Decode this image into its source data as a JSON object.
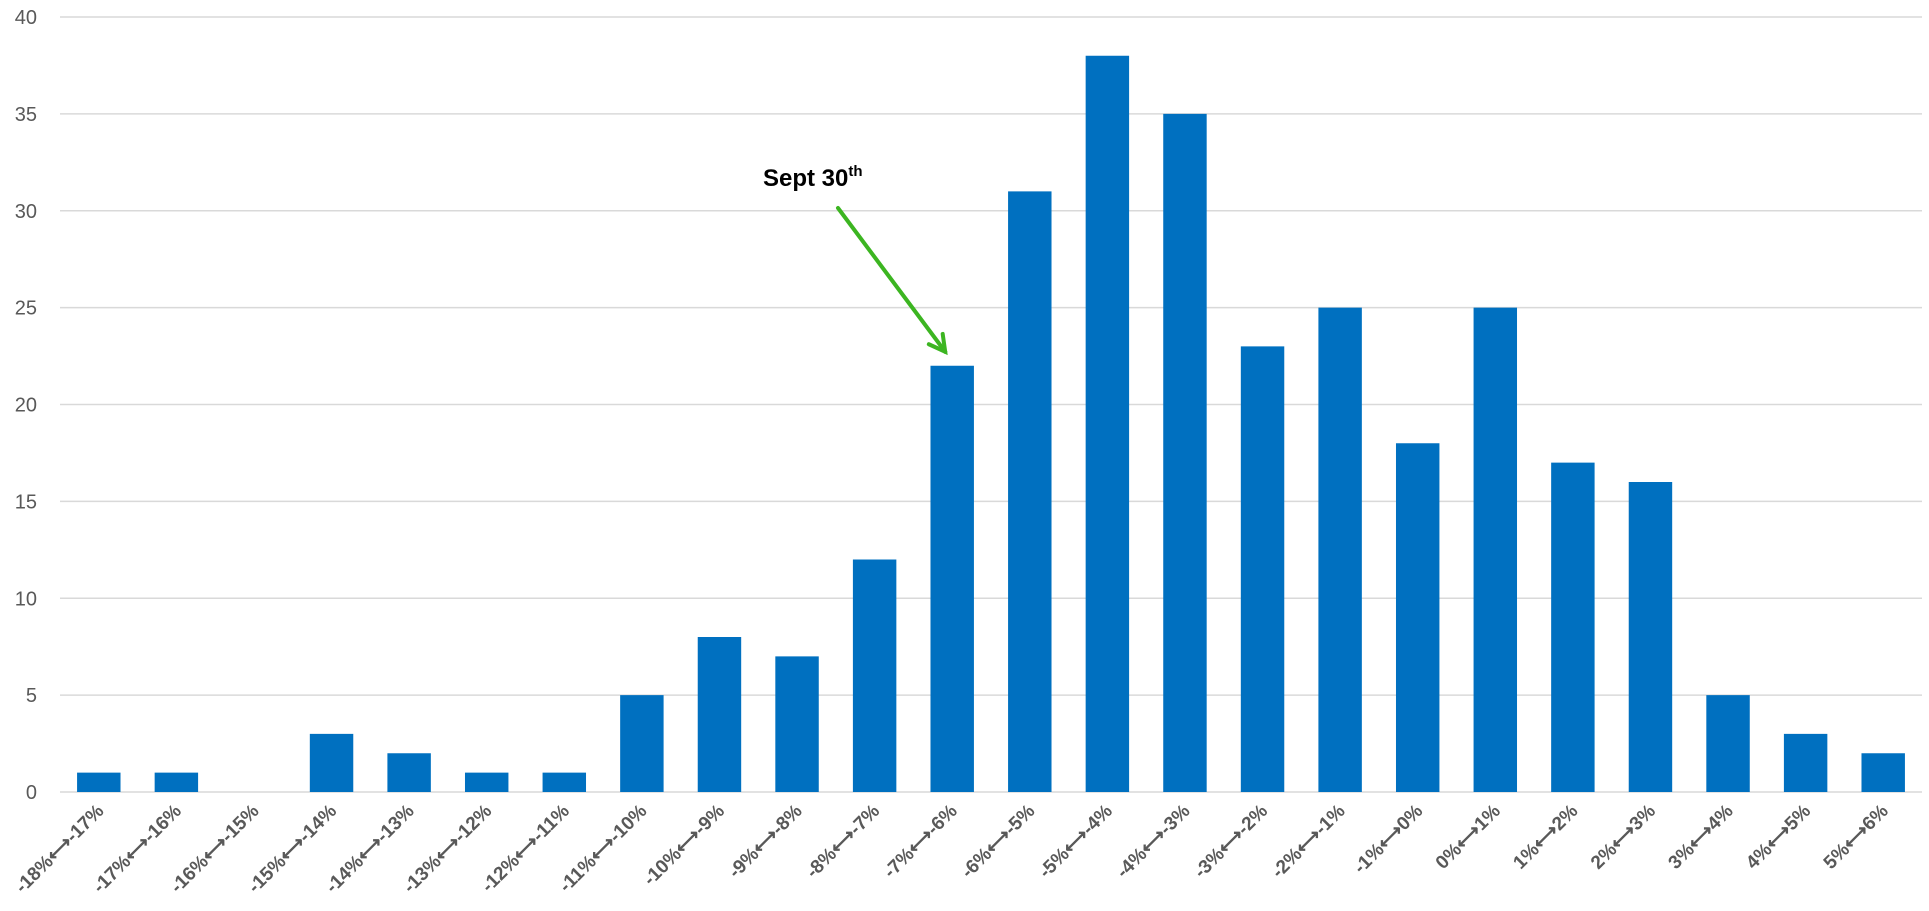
{
  "chart_data": {
    "type": "bar",
    "title": "",
    "xlabel": "",
    "ylabel": "",
    "ylim": [
      0,
      40
    ],
    "yticks": [
      0,
      5,
      10,
      15,
      20,
      25,
      30,
      35,
      40
    ],
    "grid": true,
    "categories": [
      "-18%<->-17%",
      "-17%<->-16%",
      "-16%<->-15%",
      "-15%<->-14%",
      "-14%<->-13%",
      "-13%<->-12%",
      "-12%<->-11%",
      "-11%<->-10%",
      "-10%<->-9%",
      "-9%<->-8%",
      "-8%<->-7%",
      "-7%<->-6%",
      "-6%<->-5%",
      "-5%<->-4%",
      "-4%<->-3%",
      "-3%<->-2%",
      "-2%<->-1%",
      "-1%<->0%",
      "0%<->1%",
      "1%<->2%",
      "2%<->3%",
      "3%<->4%",
      "4%<->5%",
      "5%<->6%"
    ],
    "values": [
      1,
      1,
      0,
      3,
      2,
      1,
      1,
      5,
      8,
      7,
      12,
      22,
      31,
      38,
      35,
      23,
      25,
      18,
      25,
      17,
      16,
      5,
      3,
      2
    ],
    "bar_color": "#0070C0",
    "annotation": {
      "text": "Sept 30",
      "superscript": "th",
      "target_category": "-7%<->-6%",
      "arrow_color": "#3CB521"
    }
  }
}
